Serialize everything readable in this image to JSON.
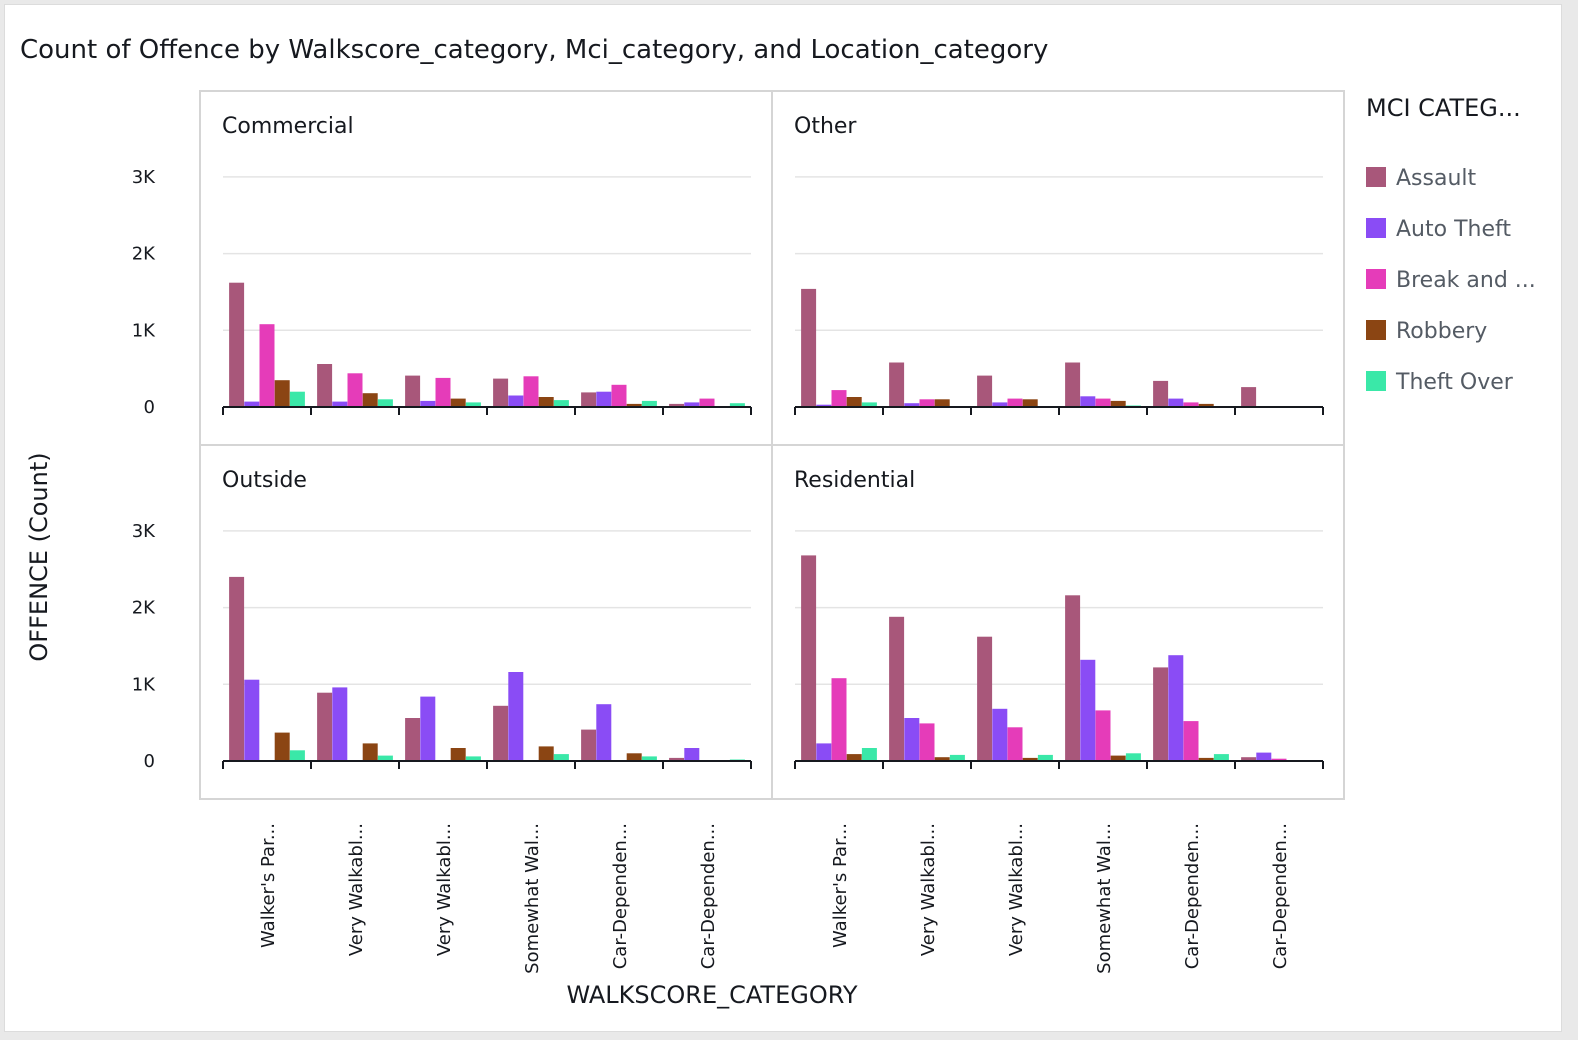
{
  "visual": {
    "title": "Count of Offence by Walkscore_category, Mci_category, and Location_category"
  },
  "chart_data": {
    "type": "bar",
    "title": "Count of Offence by Walkscore_category, Mci_category, and Location_category",
    "xlabel": "WALKSCORE_CATEGORY",
    "ylabel": "OFFENCE (Count)",
    "ylim": [
      0,
      3000
    ],
    "yticks": [
      0,
      1000,
      2000,
      3000
    ],
    "ytick_labels": [
      "0",
      "1K",
      "2K",
      "3K"
    ],
    "grid": true,
    "legend": {
      "title": "MCI CATEG...",
      "placement": "right"
    },
    "categories": [
      "Walker's Par...",
      "Very Walkabl...",
      "Very Walkabl...",
      "Somewhat Wal...",
      "Car-Dependen...",
      "Car-Dependen..."
    ],
    "series": [
      {
        "name": "Assault",
        "color": "#a8577a"
      },
      {
        "name": "Auto Theft",
        "color": "#8a4cf5"
      },
      {
        "name": "Break and ...",
        "color": "#e53cb9"
      },
      {
        "name": "Robbery",
        "color": "#8b4513"
      },
      {
        "name": "Theft Over",
        "color": "#3ae8a8"
      }
    ],
    "panels": [
      {
        "title": "Commercial",
        "values": [
          [
            1620,
            560,
            410,
            370,
            190,
            40
          ],
          [
            70,
            70,
            80,
            150,
            200,
            60
          ],
          [
            1080,
            440,
            380,
            400,
            290,
            110
          ],
          [
            350,
            180,
            110,
            130,
            40,
            0
          ],
          [
            200,
            100,
            60,
            90,
            80,
            50
          ]
        ]
      },
      {
        "title": "Other",
        "values": [
          [
            1540,
            580,
            410,
            580,
            340,
            260
          ],
          [
            30,
            50,
            60,
            140,
            110,
            10
          ],
          [
            220,
            100,
            110,
            110,
            60,
            0
          ],
          [
            130,
            100,
            100,
            80,
            40,
            0
          ],
          [
            60,
            10,
            10,
            20,
            10,
            0
          ]
        ]
      },
      {
        "title": "Outside",
        "values": [
          [
            2400,
            890,
            560,
            720,
            410,
            40
          ],
          [
            1060,
            960,
            840,
            1160,
            740,
            170
          ],
          [
            0,
            0,
            0,
            0,
            0,
            0
          ],
          [
            370,
            230,
            170,
            190,
            100,
            0
          ],
          [
            140,
            70,
            60,
            90,
            60,
            20
          ]
        ]
      },
      {
        "title": "Residential",
        "values": [
          [
            2680,
            1880,
            1620,
            2160,
            1220,
            50
          ],
          [
            230,
            560,
            680,
            1320,
            1380,
            110
          ],
          [
            1080,
            490,
            440,
            660,
            520,
            30
          ],
          [
            90,
            50,
            40,
            70,
            40,
            0
          ],
          [
            170,
            80,
            80,
            100,
            90,
            0
          ]
        ]
      }
    ]
  }
}
